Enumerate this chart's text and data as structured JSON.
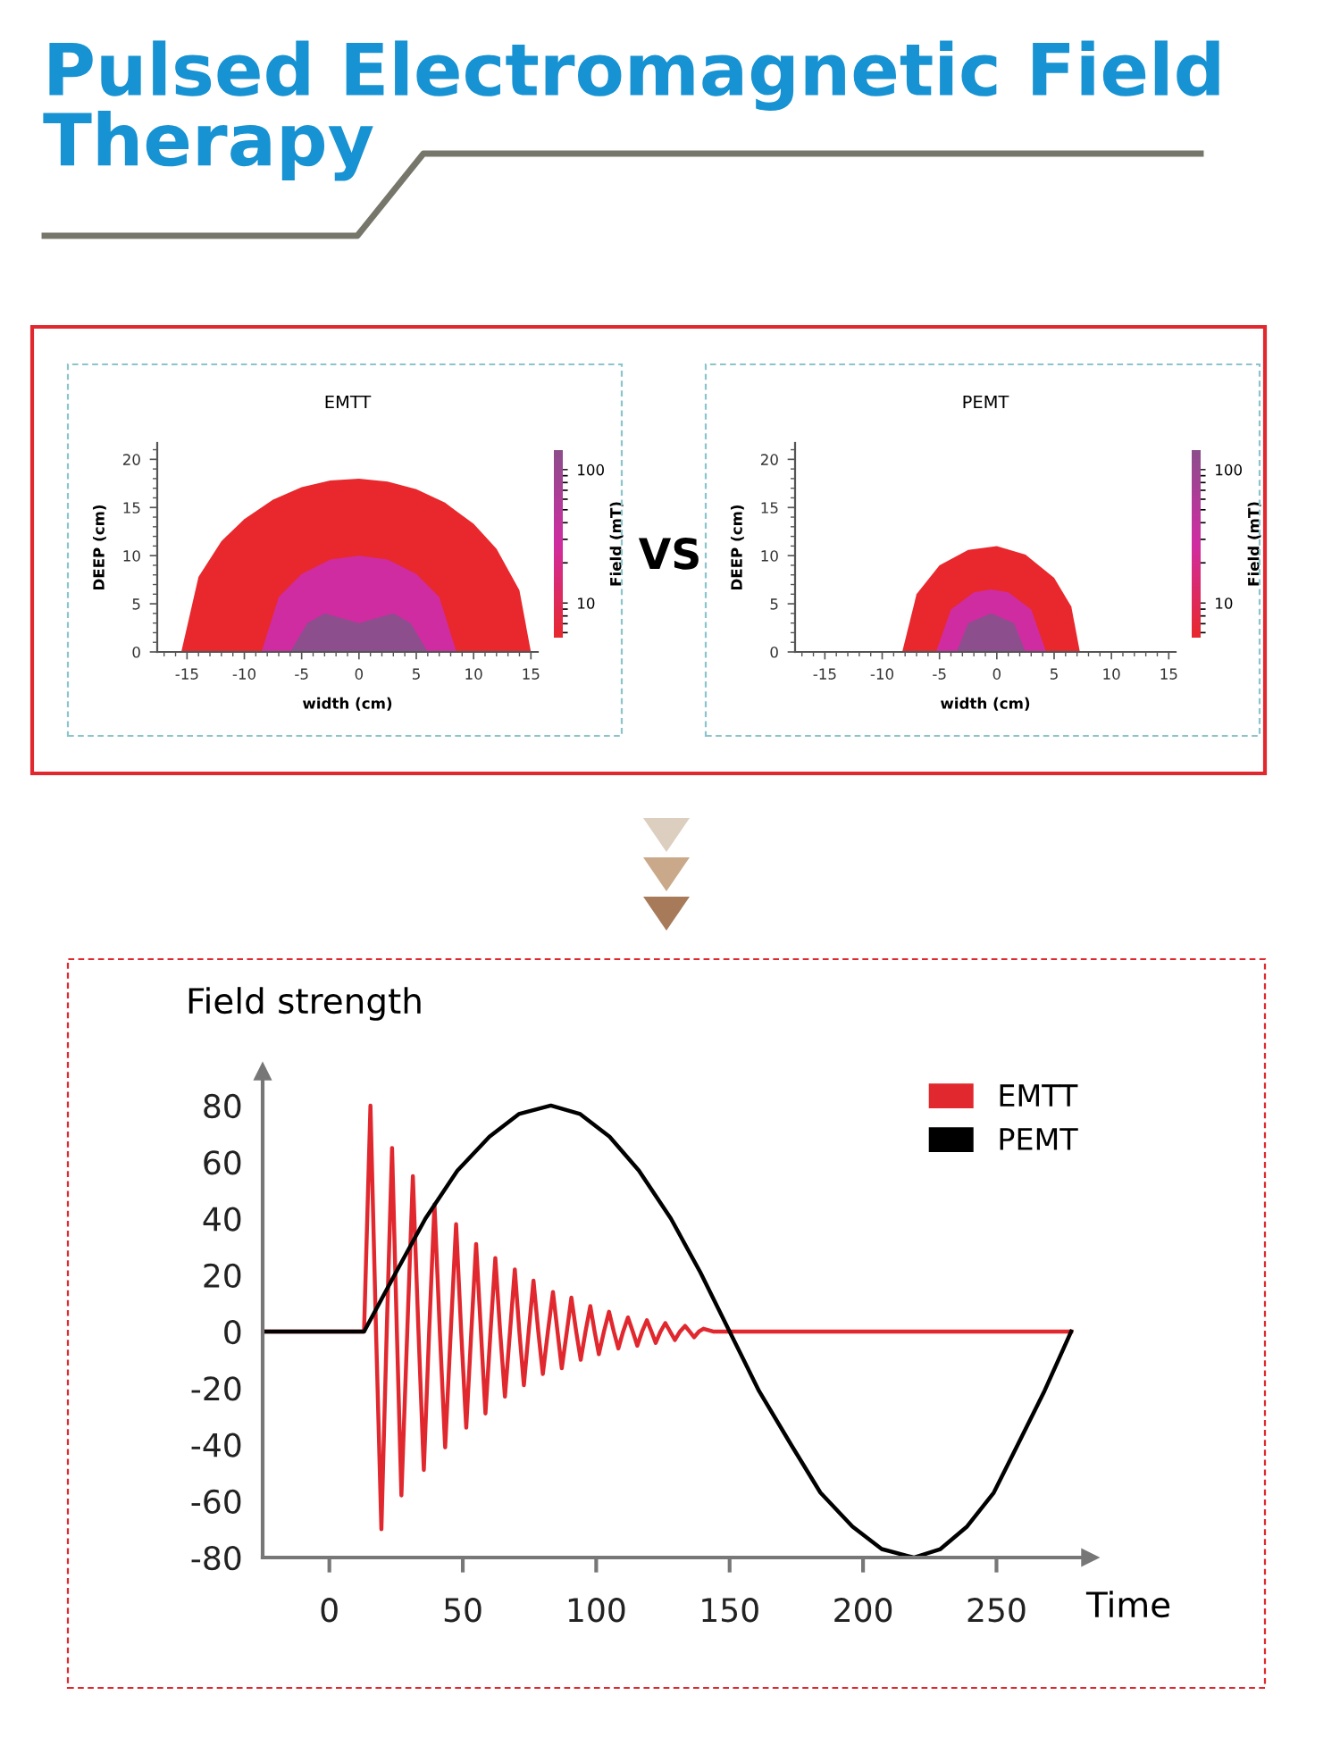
{
  "chart_data": [
    {
      "type": "other",
      "title": "Pulsed Electromagnetic Field Therapy",
      "annotations": [
        "VS"
      ]
    },
    {
      "type": "area",
      "title": "EMTT",
      "xlabel": "width (cm)",
      "ylabel": "DEEP (cm)",
      "clabel": "Field (mT)",
      "log": "c",
      "clim": [
        5.5,
        140
      ],
      "cticks": [
        10,
        100
      ],
      "xlim": [
        -17.6,
        15.6
      ],
      "ylim": [
        0,
        21.7
      ],
      "xticks": [
        -15,
        -10,
        -5,
        0,
        5,
        10,
        15
      ],
      "yticks": [
        0,
        5,
        10,
        15,
        20
      ],
      "grid": false,
      "legend": false,
      "series": [
        {
          "color": "#e8282c",
          "x": [
            -15.5,
            -14,
            -12,
            -10,
            -7.5,
            -5,
            -2.5,
            0,
            2.5,
            5,
            7.5,
            10,
            12,
            14,
            15
          ],
          "values": [
            0,
            7.8,
            11.5,
            13.8,
            15.8,
            17.1,
            17.8,
            18.0,
            17.7,
            16.9,
            15.5,
            13.3,
            10.7,
            6.4,
            0
          ]
        },
        {
          "color": "#d02ca2",
          "x": [
            -8.5,
            -7,
            -5,
            -2.5,
            0,
            2.5,
            5,
            7,
            8.5
          ],
          "values": [
            0,
            5.7,
            8.1,
            9.6,
            10,
            9.6,
            8.1,
            5.7,
            0
          ]
        },
        {
          "color": "#8c4e8c",
          "x": [
            -6,
            -4.5,
            -3,
            -1.5,
            0,
            1.5,
            3,
            4.5,
            6
          ],
          "values": [
            0,
            3,
            4,
            3.5,
            3,
            3.5,
            4,
            3,
            0
          ]
        }
      ]
    },
    {
      "type": "area",
      "title": "PEMT",
      "xlabel": "width (cm)",
      "ylabel": "DEEP (cm)",
      "clabel": "Field (mT)",
      "log": "c",
      "clim": [
        5.5,
        140
      ],
      "cticks": [
        10,
        100
      ],
      "xlim": [
        -17.6,
        15.6
      ],
      "ylim": [
        0,
        21.7
      ],
      "xticks": [
        -15,
        -10,
        -5,
        0,
        5,
        10,
        15
      ],
      "yticks": [
        0,
        5,
        10,
        15,
        20
      ],
      "grid": false,
      "legend": false,
      "series": [
        {
          "color": "#e8282c",
          "x": [
            -8.25,
            -7,
            -5,
            -2.5,
            0,
            2.5,
            5,
            6.5,
            7.25
          ],
          "values": [
            0,
            6.0,
            9.0,
            10.6,
            11.0,
            10.1,
            7.7,
            4.7,
            0
          ]
        },
        {
          "color": "#d02ca2",
          "x": [
            -5.3,
            -4,
            -2,
            -0.5,
            1,
            3,
            4.3
          ],
          "values": [
            0,
            4.4,
            6.2,
            6.5,
            6.2,
            4.4,
            0
          ]
        },
        {
          "color": "#8c4e8c",
          "x": [
            -3.5,
            -2.5,
            -0.5,
            1.5,
            2.5
          ],
          "values": [
            0,
            3.0,
            4,
            3.0,
            0
          ]
        }
      ]
    },
    {
      "type": "line",
      "ylabel": "Field strength",
      "xlabel": "Time",
      "xlim": [
        -25,
        285
      ],
      "ylim": [
        -80,
        92
      ],
      "xticks": [
        0,
        50,
        100,
        150,
        200,
        250
      ],
      "yticks": [
        -80,
        -60,
        -40,
        -20,
        0,
        20,
        40,
        60,
        80
      ],
      "grid": false,
      "legend": "top right",
      "marker": "none",
      "line_style": "solid",
      "series": [
        {
          "name": "EMTT",
          "color": "#e0282e",
          "x": [
            -25,
            13,
            15.4,
            17.5,
            19.5,
            21.5,
            23.5,
            25.3,
            27,
            29.2,
            31.3,
            33.4,
            35.4,
            37.4,
            39.4,
            41.4,
            43.4,
            45.5,
            47.5,
            49.4,
            51.3,
            53.2,
            55,
            56.8,
            58.5,
            60.4,
            62.2,
            64,
            65.8,
            67.7,
            69.5,
            71.2,
            72.9,
            74.7,
            76.5,
            78.3,
            80,
            81.9,
            83.8,
            85.5,
            87.1,
            89,
            90.7,
            92.5,
            94.2,
            96,
            97.8,
            99.4,
            101,
            102.9,
            104.8,
            106.6,
            108.3,
            110.1,
            111.9,
            113.7,
            115.4,
            117.2,
            119,
            120.7,
            122.3,
            124.1,
            125.9,
            127.7,
            129.5,
            131.4,
            133.3,
            135,
            136.7,
            138.5,
            140.2,
            143.8,
            278
          ],
          "values": [
            0,
            0,
            80,
            0,
            -70,
            0,
            65,
            0,
            -58,
            0,
            55,
            0,
            -49,
            0,
            45,
            0,
            -41,
            0,
            38,
            0,
            -34,
            0,
            31,
            0,
            -29,
            0,
            26,
            0,
            -23,
            0,
            22,
            0,
            -19,
            0,
            18,
            0,
            -15,
            0,
            14,
            0,
            -13,
            0,
            12,
            0,
            -10,
            0,
            9,
            0,
            -8,
            0,
            7,
            0,
            -6,
            0,
            5,
            0,
            -5,
            0,
            4,
            0,
            -4,
            0,
            3,
            0,
            -3,
            0,
            2,
            0,
            -2,
            0,
            1,
            0,
            0
          ]
        },
        {
          "name": "PEMT",
          "color": "#000000",
          "x": [
            -25,
            13,
            25,
            36,
            48,
            60,
            71,
            83,
            94,
            105,
            116,
            128,
            139,
            150,
            161,
            173,
            184,
            196,
            207,
            219,
            229,
            239,
            249,
            258,
            268,
            278
          ],
          "values": [
            0,
            0,
            21,
            40,
            57,
            69,
            77,
            80,
            77,
            69,
            57,
            40,
            21,
            0,
            -21,
            -40,
            -57,
            -69,
            -77,
            -80,
            -77,
            -69,
            -57,
            -40,
            -21,
            0
          ]
        }
      ]
    }
  ]
}
